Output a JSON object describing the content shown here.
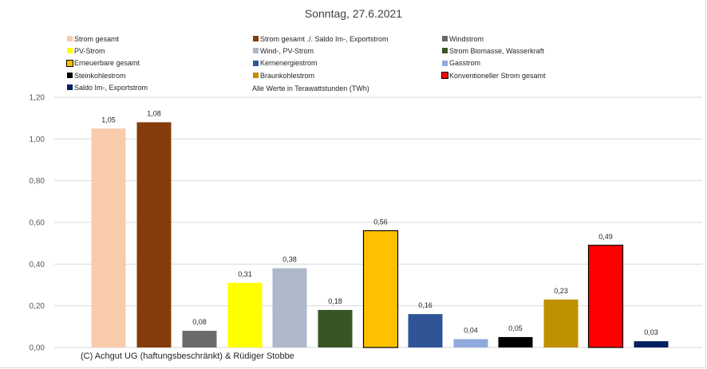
{
  "chart_data": {
    "type": "bar",
    "title": "Sonntag, 27.6.2021",
    "note": "Alle Werte in Terawattstunden (TWh)",
    "credit": "(C) Achgut UG (haftungsbeschränkt) & Rüdiger Stobbe",
    "ylim": [
      0,
      1.2
    ],
    "yticks": [
      "0,00",
      "0,20",
      "0,40",
      "0,60",
      "0,80",
      "1,00",
      "1,20"
    ],
    "grid": true,
    "legend_position": "top",
    "series": [
      {
        "name": "Strom gesamt",
        "value": 1.05,
        "label": "1,05",
        "color": "#f8cbad"
      },
      {
        "name": "Strom gesamt ./. Saldo Im-, Exportstrom",
        "value": 1.08,
        "label": "1,08",
        "color": "#843c0c"
      },
      {
        "name": "Windstrom",
        "value": 0.08,
        "label": "0,08",
        "color": "#6a6a6a"
      },
      {
        "name": "PV-Strom",
        "value": 0.31,
        "label": "0,31",
        "color": "#ffff00"
      },
      {
        "name": "Wind-, PV-Strom",
        "value": 0.38,
        "label": "0,38",
        "color": "#adb9ca"
      },
      {
        "name": "Strom Biomasse, Wasserkraft",
        "value": 0.18,
        "label": "0,18",
        "color": "#375623"
      },
      {
        "name": "Erneuerbare gesamt",
        "value": 0.56,
        "label": "0,56",
        "color": "#ffc000"
      },
      {
        "name": "Kernenergiestrom",
        "value": 0.16,
        "label": "0,16",
        "color": "#2f5597"
      },
      {
        "name": "Gasstrom",
        "value": 0.04,
        "label": "0,04",
        "color": "#8faadc"
      },
      {
        "name": "Steinkohlestrom",
        "value": 0.05,
        "label": "0,05",
        "color": "#000000"
      },
      {
        "name": "Braunkohlestrom",
        "value": 0.23,
        "label": "0,23",
        "color": "#bf9000"
      },
      {
        "name": "Konventioneller Strom gesamt",
        "value": 0.49,
        "label": "0,49",
        "color": "#ff0000"
      },
      {
        "name": "Saldo Im-, Exportstrom",
        "value": 0.03,
        "label": "0,03",
        "color": "#002060"
      }
    ]
  }
}
